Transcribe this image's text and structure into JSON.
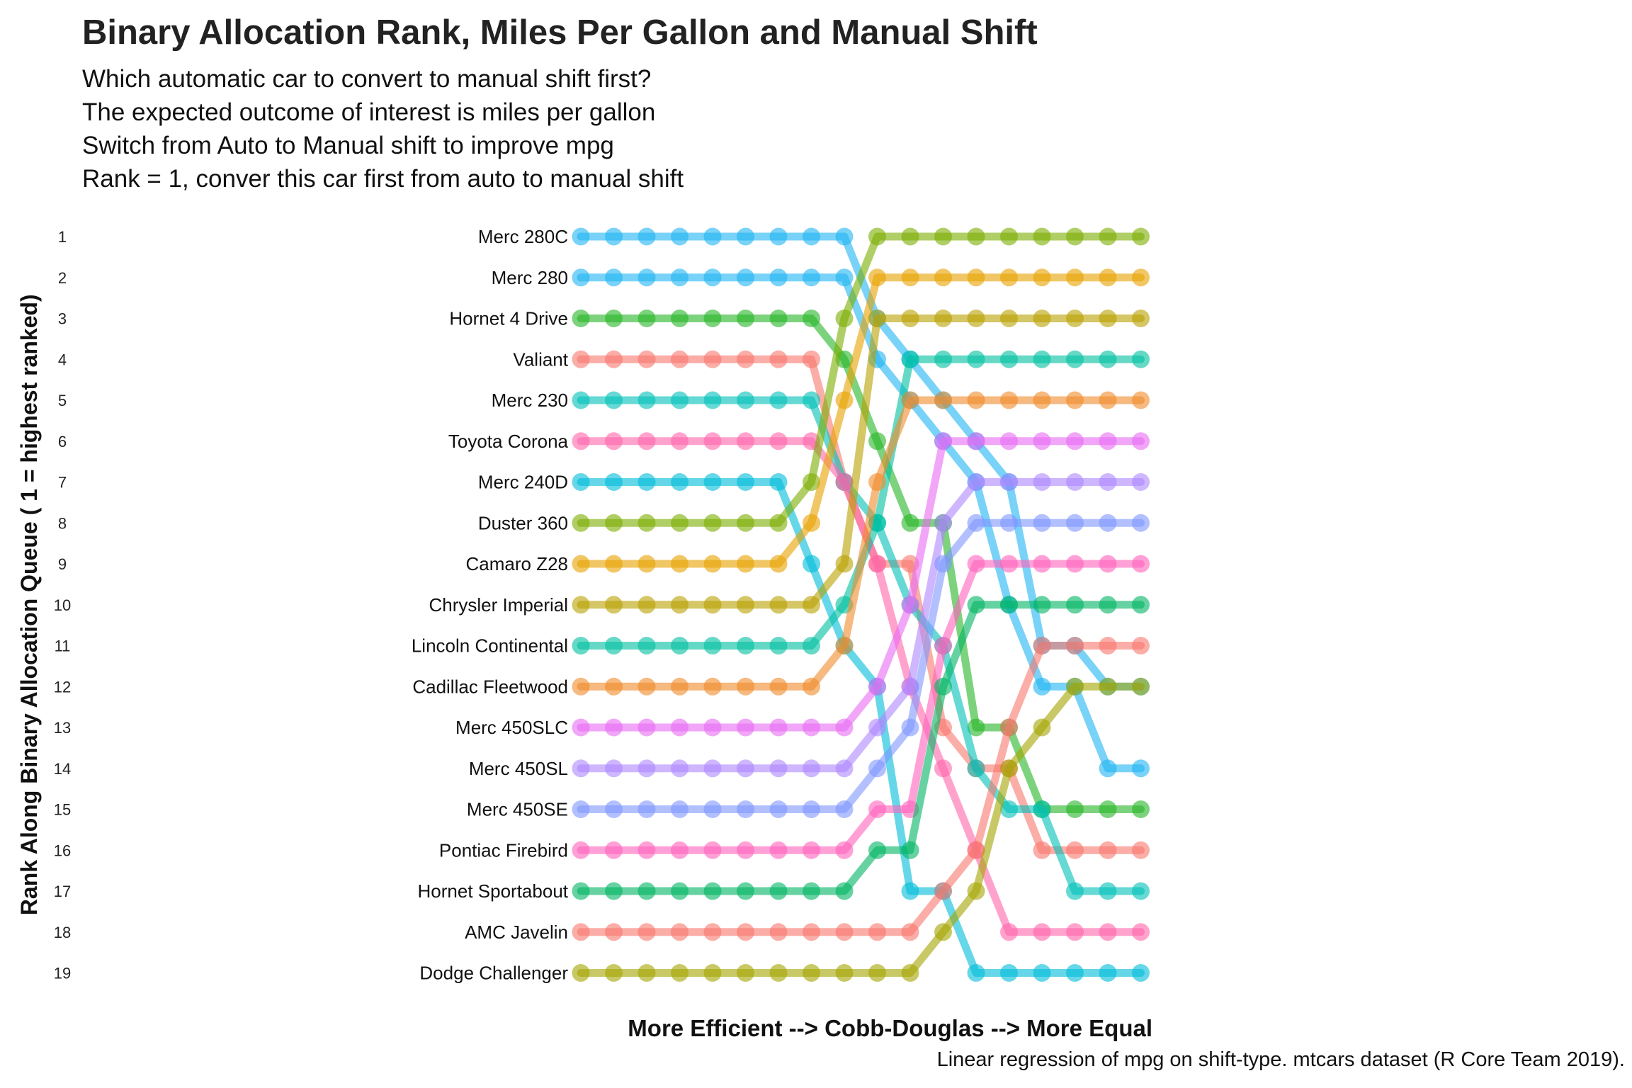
{
  "title": "Binary Allocation Rank, Miles Per Gallon and Manual Shift",
  "subtitle_lines": [
    "Which automatic car to convert to manual shift first?",
    "The expected outcome of interest is miles per gallon",
    "Switch from Auto to Manual shift to improve mpg",
    "Rank = 1, conver this car first from auto to manual shift"
  ],
  "caption": "Linear regression of mpg on shift-type. mtcars dataset (R Core Team 2019).",
  "chart_data": {
    "type": "line",
    "chart_subtype": "bump",
    "xlabel": "More Efficient --> Cobb-Douglas --> More Equal",
    "ylabel": "Rank Along Binary Allocation Queue ( 1 = highest ranked)",
    "y_reversed": true,
    "ylim": [
      1,
      19
    ],
    "yticks": [
      1,
      2,
      3,
      4,
      5,
      6,
      7,
      8,
      9,
      10,
      11,
      12,
      13,
      14,
      15,
      16,
      17,
      18,
      19
    ],
    "x": [
      1,
      2,
      3,
      4,
      5,
      6,
      7,
      8,
      9,
      10,
      11,
      12,
      13,
      14,
      15,
      16,
      17,
      18
    ],
    "series": [
      {
        "name": "Merc 280C",
        "color": "#1FB4F2",
        "values": [
          1,
          1,
          1,
          1,
          1,
          1,
          1,
          1,
          1,
          3,
          4,
          5,
          6,
          7,
          11,
          11,
          12,
          12
        ]
      },
      {
        "name": "Merc 280",
        "color": "#1FB4F2",
        "values": [
          2,
          2,
          2,
          2,
          2,
          2,
          2,
          2,
          2,
          4,
          5,
          6,
          7,
          10,
          12,
          12,
          14,
          14
        ]
      },
      {
        "name": "Hornet 4 Drive",
        "color": "#26B626",
        "values": [
          3,
          3,
          3,
          3,
          3,
          3,
          3,
          3,
          4,
          6,
          8,
          8,
          13,
          13,
          15,
          15,
          15,
          15
        ]
      },
      {
        "name": "Valiant",
        "color": "#F8766D",
        "values": [
          4,
          4,
          4,
          4,
          4,
          4,
          4,
          4,
          7,
          9,
          9,
          13,
          14,
          14,
          16,
          16,
          16,
          16
        ]
      },
      {
        "name": "Merc 230",
        "color": "#00C0B8",
        "values": [
          5,
          5,
          5,
          5,
          5,
          5,
          5,
          5,
          7,
          8,
          10,
          11,
          14,
          15,
          15,
          17,
          17,
          17
        ]
      },
      {
        "name": "Toyota Corona",
        "color": "#FF65AC",
        "values": [
          6,
          6,
          6,
          6,
          6,
          6,
          6,
          6,
          7,
          9,
          12,
          14,
          16,
          18,
          18,
          18,
          18,
          18
        ]
      },
      {
        "name": "Merc 240D",
        "color": "#00BCD8",
        "values": [
          7,
          7,
          7,
          7,
          7,
          7,
          7,
          9,
          11,
          12,
          17,
          17,
          19,
          19,
          19,
          19,
          19,
          19
        ]
      },
      {
        "name": "Duster 360",
        "color": "#7CAE00",
        "values": [
          8,
          8,
          8,
          8,
          8,
          8,
          8,
          7,
          3,
          1,
          1,
          1,
          1,
          1,
          1,
          1,
          1,
          1
        ]
      },
      {
        "name": "Camaro Z28",
        "color": "#E7A200",
        "values": [
          9,
          9,
          9,
          9,
          9,
          9,
          9,
          8,
          5,
          2,
          2,
          2,
          2,
          2,
          2,
          2,
          2,
          2
        ]
      },
      {
        "name": "Chrysler Imperial",
        "color": "#B9A000",
        "values": [
          10,
          10,
          10,
          10,
          10,
          10,
          10,
          10,
          9,
          3,
          3,
          3,
          3,
          3,
          3,
          3,
          3,
          3
        ]
      },
      {
        "name": "Lincoln Continental",
        "color": "#00BFA0",
        "values": [
          11,
          11,
          11,
          11,
          11,
          11,
          11,
          11,
          10,
          8,
          4,
          4,
          4,
          4,
          4,
          4,
          4,
          4
        ]
      },
      {
        "name": "Cadillac Fleetwood",
        "color": "#F08A2A",
        "values": [
          12,
          12,
          12,
          12,
          12,
          12,
          12,
          12,
          11,
          7,
          5,
          5,
          5,
          5,
          5,
          5,
          5,
          5
        ]
      },
      {
        "name": "Merc 450SLC",
        "color": "#E76BF3",
        "values": [
          13,
          13,
          13,
          13,
          13,
          13,
          13,
          13,
          13,
          12,
          10,
          6,
          6,
          6,
          6,
          6,
          6,
          6
        ]
      },
      {
        "name": "Merc 450SL",
        "color": "#AE87FF",
        "values": [
          14,
          14,
          14,
          14,
          14,
          14,
          14,
          14,
          14,
          13,
          12,
          8,
          7,
          7,
          7,
          7,
          7,
          7
        ]
      },
      {
        "name": "Merc 450SE",
        "color": "#7F96FF",
        "values": [
          15,
          15,
          15,
          15,
          15,
          15,
          15,
          15,
          15,
          14,
          13,
          9,
          8,
          8,
          8,
          8,
          8,
          8
        ]
      },
      {
        "name": "Pontiac Firebird",
        "color": "#FF62BC",
        "values": [
          16,
          16,
          16,
          16,
          16,
          16,
          16,
          16,
          16,
          15,
          15,
          11,
          9,
          9,
          9,
          9,
          9,
          9
        ]
      },
      {
        "name": "Hornet Sportabout",
        "color": "#00B462",
        "values": [
          17,
          17,
          17,
          17,
          17,
          17,
          17,
          17,
          17,
          16,
          16,
          12,
          10,
          10,
          10,
          10,
          10,
          10
        ]
      },
      {
        "name": "AMC Javelin",
        "color": "#F8766D",
        "values": [
          18,
          18,
          18,
          18,
          18,
          18,
          18,
          18,
          18,
          18,
          18,
          17,
          16,
          13,
          11,
          11,
          11,
          11
        ]
      },
      {
        "name": "Dodge Challenger",
        "color": "#A3A500",
        "values": [
          19,
          19,
          19,
          19,
          19,
          19,
          19,
          19,
          19,
          19,
          19,
          18,
          17,
          14,
          13,
          12,
          12,
          12
        ]
      }
    ]
  }
}
